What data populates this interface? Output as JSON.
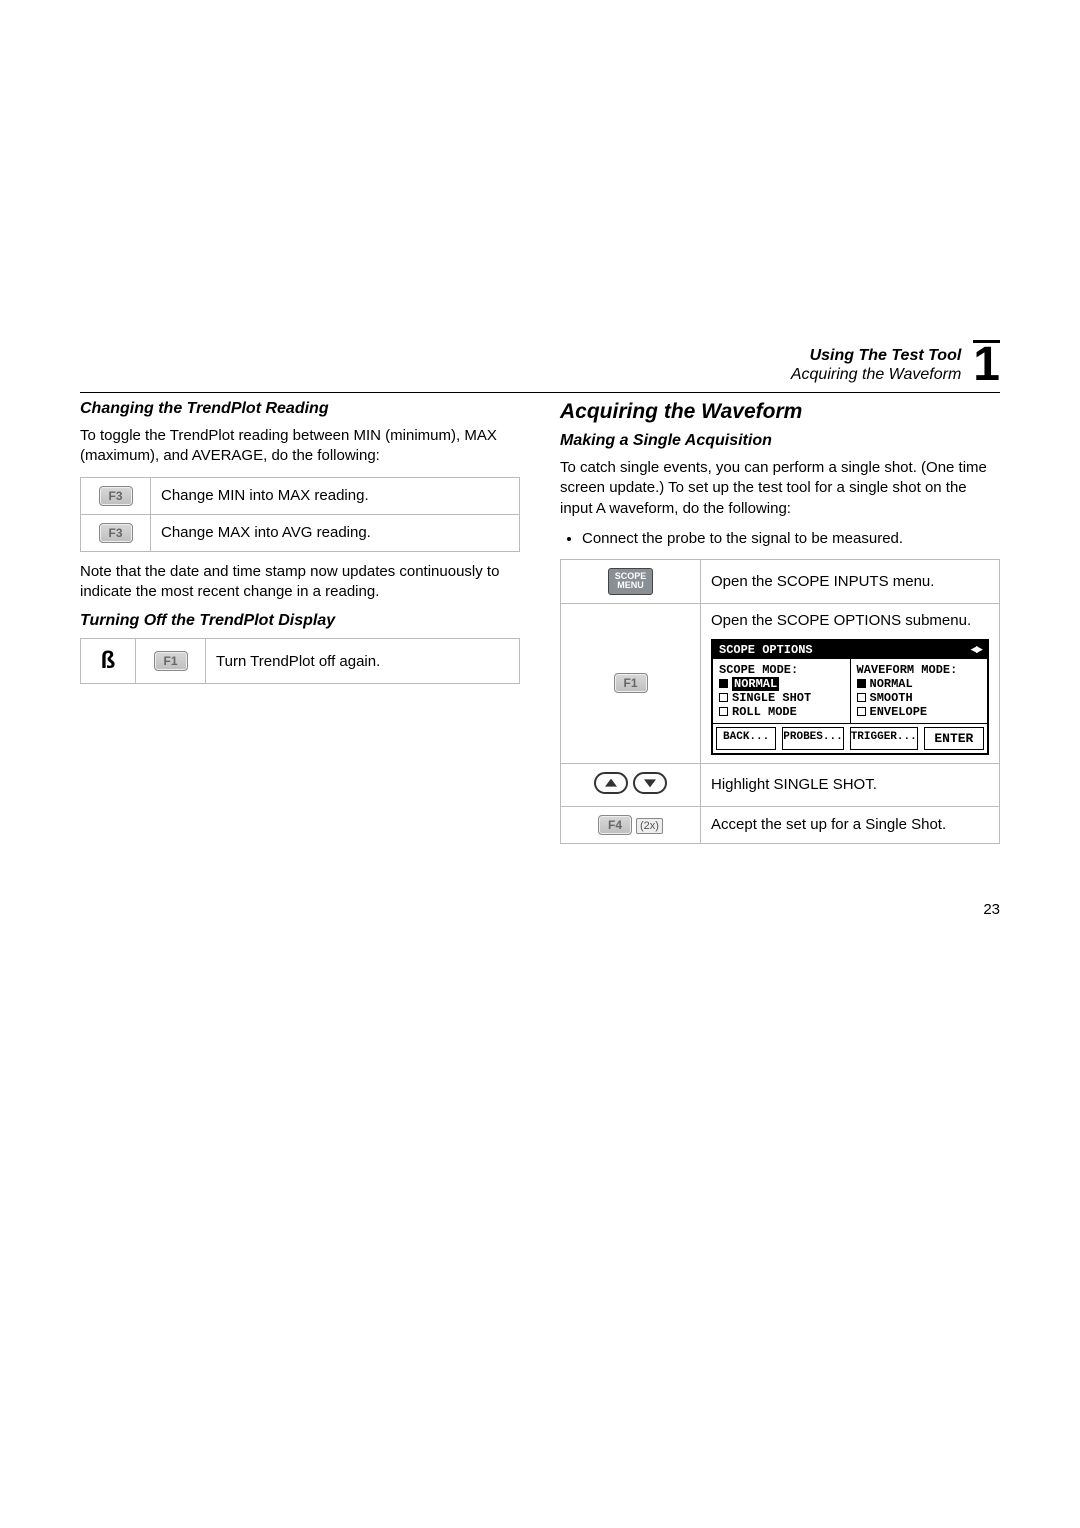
{
  "header": {
    "line1": "Using The Test Tool",
    "line2": "Acquiring the Waveform",
    "chapter": "1"
  },
  "left": {
    "sec1_title": "Changing the TrendPlot Reading",
    "sec1_para": "To toggle the TrendPlot reading between MIN (minimum), MAX (maximum), and AVERAGE, do the following:",
    "rows": [
      {
        "key": "F3",
        "text": "Change MIN into MAX reading."
      },
      {
        "key": "F3",
        "text": "Change MAX into AVG reading."
      }
    ],
    "note": "Note that the date and time stamp now updates continuously to indicate the most recent change in a reading.",
    "sec2_title": "Turning Off the TrendPlot Display",
    "row2": {
      "marker": "ß",
      "key": "F1",
      "text": "Turn TrendPlot off again."
    }
  },
  "right": {
    "main_title": "Acquiring the Waveform",
    "sub_title": "Making a Single Acquisition",
    "para": "To catch single events, you can perform a single shot. (One time screen update.) To set up the test tool for a single shot on the input A waveform, do the following:",
    "bullet": "Connect the probe to the signal to be measured.",
    "steps": [
      {
        "keyhtml": "scope",
        "text": "Open the SCOPE INPUTS menu."
      },
      {
        "keyhtml": "F1",
        "text": "Open the SCOPE OPTIONS submenu.",
        "haspanel": true
      },
      {
        "keyhtml": "arrows",
        "text": "Highlight SINGLE SHOT."
      },
      {
        "keyhtml": "F4x2",
        "text": "Accept the set up for a Single Shot."
      }
    ],
    "panel": {
      "title": "SCOPE OPTIONS",
      "colA_title": "SCOPE MODE:",
      "colA": [
        "NORMAL",
        "SINGLE SHOT",
        "ROLL MODE"
      ],
      "colA_sel": 0,
      "colB_title": "WAVEFORM MODE:",
      "colB": [
        "NORMAL",
        "SMOOTH",
        "ENVELOPE"
      ],
      "colB_sel": 0,
      "btns": [
        "BACK...",
        "PROBES...",
        "TRIGGER...",
        "ENTER"
      ]
    }
  },
  "pagenum": "23"
}
